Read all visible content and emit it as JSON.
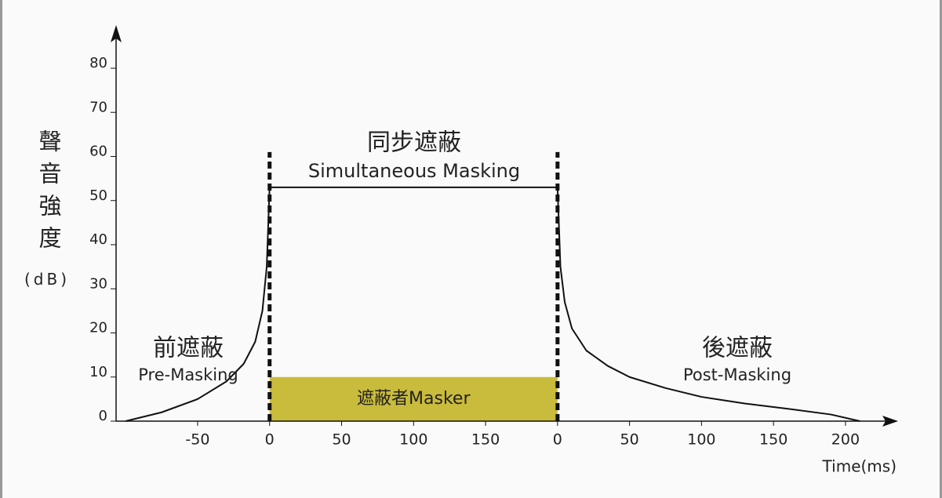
{
  "chart_data": {
    "type": "line",
    "x_label": "Time(ms)",
    "y_label": "聲音強度",
    "y_unit": "(dB)",
    "xlim": [
      -105,
      430
    ],
    "ylim": [
      0,
      80
    ],
    "xticks": [
      -50,
      0,
      50,
      100,
      150,
      {
        "value": 200,
        "label": "0"
      },
      {
        "value": 250,
        "label": "50"
      },
      {
        "value": 300,
        "label": "100"
      },
      {
        "value": 350,
        "label": "150"
      },
      {
        "value": 400,
        "label": "200"
      }
    ],
    "yticks": [
      0,
      10,
      20,
      30,
      40,
      50,
      60,
      70,
      80
    ],
    "series": [
      {
        "color": "#111111",
        "x": [
          -100,
          -75,
          -50,
          -30,
          -18,
          -10,
          -5,
          -2,
          0,
          200,
          202,
          205,
          210,
          220,
          235,
          250,
          275,
          300,
          330,
          360,
          390,
          410
        ],
        "values": [
          0,
          2,
          5,
          9,
          13,
          18,
          25,
          35,
          53,
          53,
          35,
          27,
          21,
          16,
          12.5,
          10,
          7.5,
          5.5,
          4,
          2.8,
          1.5,
          0
        ]
      }
    ],
    "masker": {
      "label": "遮蔽者Masker",
      "x": [
        0,
        200
      ],
      "value": 10,
      "color": "#c9bb3c"
    },
    "boundaries": {
      "x": [
        0,
        200
      ],
      "value": 61
    },
    "annotations": [
      {
        "text": "同步遮蔽"
      },
      {
        "text": "Simultaneous Masking"
      },
      {
        "text": "前遮蔽"
      },
      {
        "text": "Pre-Masking"
      },
      {
        "text": "後遮蔽"
      },
      {
        "text": "Post-Masking"
      }
    ]
  }
}
